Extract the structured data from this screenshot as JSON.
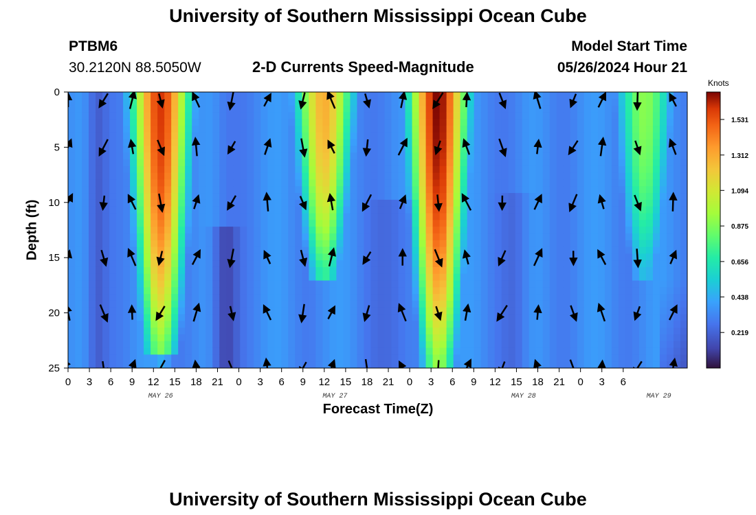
{
  "header": {
    "title": "University of Southern Mississippi Ocean Cube",
    "station": "PTBM6",
    "coords": "30.2120N  88.5050W",
    "subtitle": "2-D Currents Speed-Magnitude",
    "model_label": "Model Start Time",
    "model_time": "05/26/2024 Hour 21"
  },
  "footer": {
    "title": "University of Southern Mississippi Ocean Cube"
  },
  "chart_data": {
    "type": "heatmap",
    "title": "2-D Currents Speed-Magnitude",
    "xlabel": "Forecast Time(Z)",
    "ylabel": "Depth (ft)",
    "x_range_hours": [
      0,
      87
    ],
    "ylim": [
      0,
      25
    ],
    "y_ticks": [
      "0",
      "5",
      "10",
      "15",
      "20",
      "25"
    ],
    "x_tick_labels": [
      "0",
      "3",
      "6",
      "9",
      "12",
      "15",
      "18",
      "21",
      "0",
      "3",
      "6",
      "9",
      "12",
      "15",
      "18",
      "21",
      "0",
      "3",
      "6",
      "9",
      "12",
      "15",
      "18",
      "21",
      "0",
      "3",
      "6"
    ],
    "date_labels": [
      {
        "label": "MAY 26",
        "hour": 13
      },
      {
        "label": "MAY 27",
        "hour": 37.5
      },
      {
        "label": "MAY 28",
        "hour": 64
      },
      {
        "label": "MAY 29",
        "hour": 83
      }
    ],
    "colorbar": {
      "label": "Knots",
      "ticks": [
        "1.531",
        "1.312",
        "1.094",
        "0.875",
        "0.656",
        "0.438",
        "0.219"
      ],
      "tick_values": [
        1.531,
        1.312,
        1.094,
        0.875,
        0.656,
        0.438,
        0.219
      ],
      "vmin": 0.0,
      "vmax": 1.7
    },
    "speed_cores": [
      {
        "hour": 13,
        "max_depth_ft": 20,
        "peak_knots": 1.6
      },
      {
        "hour": 36,
        "max_depth_ft": 13,
        "peak_knots": 1.3
      },
      {
        "hour": 52,
        "max_depth_ft": 21,
        "peak_knots": 1.7
      },
      {
        "hour": 81,
        "max_depth_ft": 13,
        "peak_knots": 0.9
      }
    ],
    "vector_hours": [
      0,
      5,
      9,
      13,
      18,
      23,
      28,
      33,
      37,
      42,
      47,
      52,
      56,
      61,
      66,
      71,
      75,
      80,
      85
    ],
    "vector_depths_ft": [
      0,
      5,
      10,
      15,
      20,
      25
    ]
  }
}
